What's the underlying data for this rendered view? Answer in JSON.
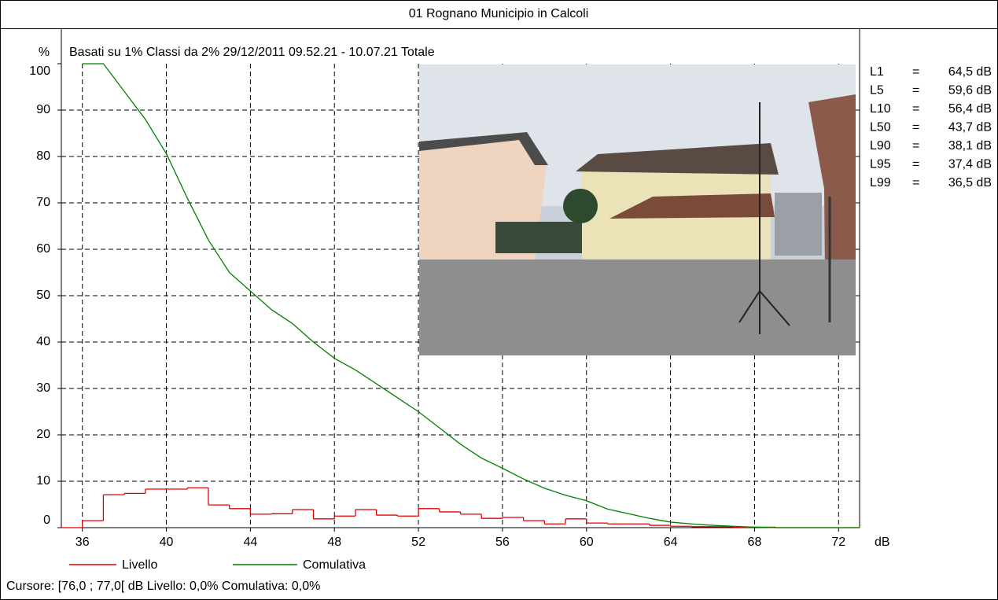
{
  "chart_data": {
    "type": "distribution",
    "title": "01 Rognano Municipio in Calcoli",
    "subtitle": "Basati su 1%   Classi da 2%  29/12/2011 09.52.21 - 10.07.21  Totale",
    "y_label": "%",
    "x_label": "dB",
    "xlim": [
      35,
      73
    ],
    "xticks": [
      36,
      40,
      44,
      48,
      52,
      56,
      60,
      64,
      68,
      72
    ],
    "ylim": [
      0,
      100
    ],
    "yticks": [
      0,
      10,
      20,
      30,
      40,
      50,
      60,
      70,
      80,
      90,
      100
    ],
    "grid": true,
    "series": [
      {
        "name": "Livello",
        "color": "#e00000",
        "type": "step",
        "bins": [
          35,
          36,
          37,
          38,
          39,
          40,
          41,
          42,
          43,
          44,
          45,
          46,
          47,
          48,
          49,
          50,
          51,
          52,
          53,
          54,
          55,
          56,
          57,
          58,
          59,
          60,
          61,
          62,
          63,
          64,
          65,
          66,
          67,
          68,
          69,
          70,
          71,
          72,
          73
        ],
        "values": [
          0,
          1.5,
          7.1,
          7.4,
          8.3,
          8.3,
          8.6,
          4.9,
          4.1,
          2.9,
          3.0,
          3.9,
          1.9,
          2.5,
          3.9,
          2.7,
          2.5,
          4.1,
          3.4,
          2.9,
          2.0,
          2.2,
          1.5,
          0.8,
          1.9,
          1.0,
          0.8,
          0.8,
          0.5,
          0.3,
          0.2,
          0.2,
          0.1,
          0.1,
          0,
          0,
          0,
          0
        ]
      },
      {
        "name": "Comulativa",
        "color": "#008000",
        "type": "line",
        "x": [
          36,
          37,
          38,
          39,
          40,
          41,
          42,
          43,
          44,
          45,
          46,
          47,
          48,
          49,
          50,
          51,
          52,
          53,
          54,
          55,
          56,
          57,
          58,
          59,
          60,
          61,
          62,
          63,
          64,
          65,
          66,
          67,
          68,
          69,
          70,
          71,
          72,
          73
        ],
        "values": [
          100,
          100,
          94,
          88,
          80.6,
          71,
          62,
          55,
          51,
          47,
          44,
          40,
          36.5,
          34,
          31,
          28,
          25,
          21.5,
          18,
          15,
          12.8,
          10.5,
          8.5,
          7,
          5.8,
          4,
          3,
          2,
          1.2,
          0.8,
          0.5,
          0.3,
          0.1,
          0,
          0,
          0,
          0,
          0
        ]
      }
    ],
    "stats": [
      {
        "label": "L1",
        "sep": "=",
        "value": "64,5 dB"
      },
      {
        "label": "L5",
        "sep": "=",
        "value": "59,6 dB"
      },
      {
        "label": "L10",
        "sep": "=",
        "value": "56,4 dB"
      },
      {
        "label": "L50",
        "sep": "=",
        "value": "43,7 dB"
      },
      {
        "label": "L90",
        "sep": "=",
        "value": "38,1 dB"
      },
      {
        "label": "L95",
        "sep": "=",
        "value": "37,4 dB"
      },
      {
        "label": "L99",
        "sep": "=",
        "value": "36,5 dB"
      }
    ],
    "footer": "Cursore: [76,0 ; 77,0[ dB   Livello: 0,0%   Comulativa: 0,0%"
  }
}
